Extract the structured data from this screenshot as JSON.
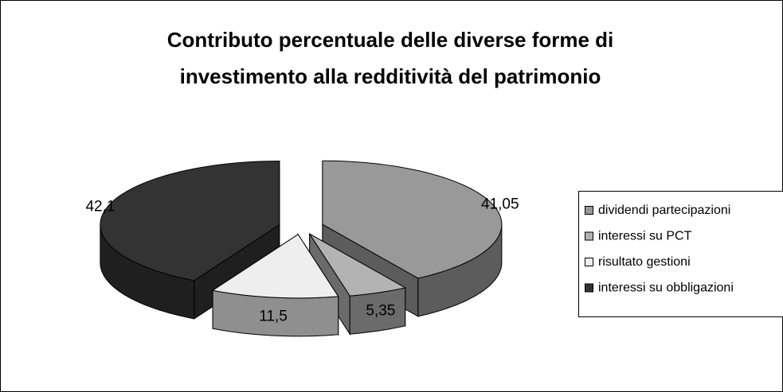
{
  "chart_data": {
    "type": "pie",
    "title": [
      "Contributo percentuale delle diverse forme di",
      "investimento alla redditività del patrimonio"
    ],
    "categories": [
      "dividendi partecipazioni",
      "interessi su PCT",
      "risultato gestioni",
      "interessi su obbligazioni"
    ],
    "values": [
      41.05,
      5.35,
      11.5,
      42.1
    ],
    "value_labels": [
      "41,05",
      "5,35",
      "11,5",
      "42,1"
    ],
    "colors": [
      "#999999",
      "#b3b3b3",
      "#eeeeee",
      "#333333"
    ],
    "legend": "right"
  }
}
